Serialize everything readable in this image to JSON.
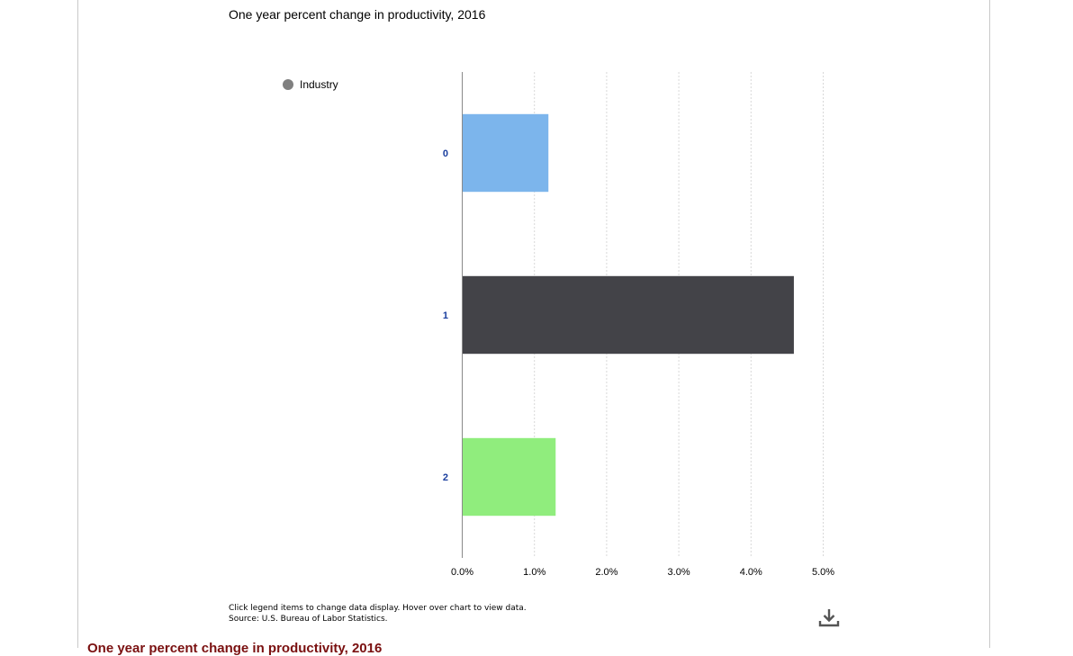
{
  "page": {
    "below_title": "One year percent change in productivity, 2016",
    "below_title_color": "#7a1010"
  },
  "chart_data": {
    "type": "bar",
    "orientation": "horizontal",
    "title": "One year percent change in productivity, 2016",
    "legend": [
      {
        "label": "Industry",
        "color": "#808080"
      }
    ],
    "legend_position": "top-left",
    "categories": [
      "0",
      "1",
      "2"
    ],
    "values": [
      1.2,
      4.6,
      1.3
    ],
    "colors": [
      "#7cb5ec",
      "#434348",
      "#90ed7d"
    ],
    "xlim": [
      0,
      5
    ],
    "x_ticks": [
      "0.0%",
      "1.0%",
      "2.0%",
      "3.0%",
      "4.0%",
      "5.0%"
    ],
    "grid": true,
    "category_label_color": "#1a3e9e"
  },
  "footer": {
    "instructions": "Click legend items to change data display. Hover over chart to view data.",
    "source": "Source: U.S. Bureau of Labor Statistics.",
    "download_icon": "download-icon"
  }
}
